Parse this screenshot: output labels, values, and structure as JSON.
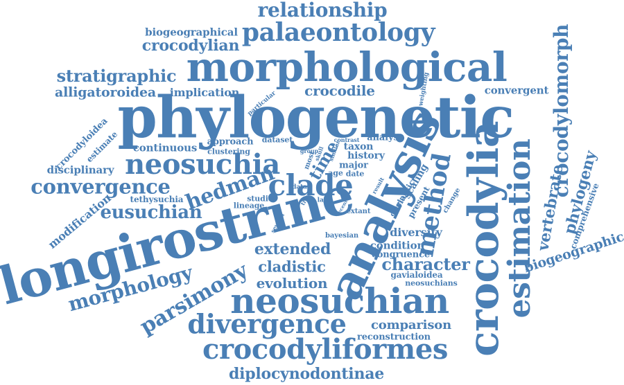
{
  "colors": {
    "word": "#4a7fb5",
    "background": "#ffffff"
  },
  "words": [
    "relationship",
    "biogeographical",
    "palaeontology",
    "crocodylian",
    "morphological",
    "stratigraphic",
    "alligatoroidea",
    "implication",
    "crocodile",
    "convergent",
    "phylogenetic",
    "crocodylomorph",
    "crocodyloidea",
    "estimate",
    "continuous",
    "approach",
    "dataset",
    "clustering",
    "disciplinary",
    "neosuchia",
    "clade",
    "time",
    "analyse",
    "taxon",
    "history",
    "major",
    "age",
    "date",
    "method",
    "crocodylia",
    "estimation",
    "vertebrate",
    "phylogeny",
    "comprehensive",
    "convergence",
    "hedman",
    "tethysuchia",
    "eusuchian",
    "modification",
    "longirostrine",
    "analysis",
    "scaling",
    "triassic",
    "present",
    "origin",
    "change",
    "data",
    "lineage",
    "studies",
    "late",
    "extant",
    "diversity",
    "condition",
    "congruence",
    "bayesian",
    "extended",
    "character",
    "cladistic",
    "morphology",
    "parsimony",
    "evolution",
    "gavialoidea",
    "neosuchians",
    "biogeographic",
    "neosuchian",
    "divergence",
    "comparison",
    "reconstruction",
    "crocodyliformes",
    "diplocynodontinae",
    "weighting",
    "particular",
    "most",
    "skull",
    "similar",
    "contrast",
    "group",
    "result",
    "several",
    "tree",
    "clade",
    "recent"
  ]
}
